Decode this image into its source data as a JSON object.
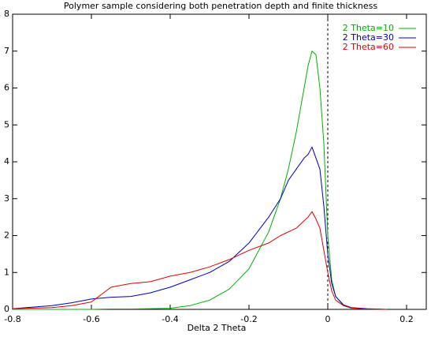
{
  "chart_data": {
    "type": "line",
    "title": "Polymer sample considering both penetration depth and finite thickness",
    "x_label": "Delta 2 Theta",
    "x": [
      -0.8,
      -0.7,
      -0.65,
      -0.6,
      -0.55,
      -0.5,
      -0.45,
      -0.4,
      -0.35,
      -0.3,
      -0.25,
      -0.2,
      -0.15,
      -0.12,
      -0.1,
      -0.08,
      -0.06,
      -0.05,
      -0.04,
      -0.03,
      -0.02,
      -0.01,
      0,
      0.01,
      0.02,
      0.04,
      0.06,
      0.1,
      0.15
    ],
    "series": [
      {
        "name": "2 Theta=10",
        "color": "#00b000",
        "values": [
          0,
          0,
          0,
          0,
          0.01,
          0.01,
          0.02,
          0.03,
          0.1,
          0.25,
          0.55,
          1.1,
          2.1,
          3.0,
          3.8,
          4.8,
          6.0,
          6.6,
          7.0,
          6.9,
          6.0,
          4.5,
          2.0,
          0.8,
          0.35,
          0.1,
          0.03,
          0.01,
          0
        ]
      },
      {
        "name": "2 Theta=30",
        "color": "#0000c0",
        "values": [
          0.02,
          0.1,
          0.18,
          0.28,
          0.33,
          0.35,
          0.45,
          0.6,
          0.8,
          1.0,
          1.3,
          1.8,
          2.5,
          3.0,
          3.5,
          3.8,
          4.1,
          4.2,
          4.4,
          4.1,
          3.8,
          2.8,
          1.5,
          0.7,
          0.35,
          0.12,
          0.05,
          0.02,
          0
        ]
      },
      {
        "name": "2 Theta=60",
        "color": "#e00000",
        "values": [
          0.02,
          0.05,
          0.1,
          0.2,
          0.6,
          0.7,
          0.75,
          0.9,
          1.0,
          1.15,
          1.35,
          1.6,
          1.8,
          2.0,
          2.1,
          2.2,
          2.4,
          2.5,
          2.65,
          2.45,
          2.2,
          1.6,
          1.0,
          0.5,
          0.25,
          0.1,
          0.04,
          0.01,
          0
        ]
      }
    ],
    "xlim": [
      -0.8,
      0.25
    ],
    "xticks": [
      -0.8,
      -0.6,
      -0.4,
      -0.2,
      0,
      0.2
    ],
    "ylim": [
      0,
      8
    ],
    "yticks": [
      0,
      1,
      2,
      3,
      4,
      5,
      6,
      7,
      8
    ],
    "vline": 0,
    "legend": "top-right"
  }
}
